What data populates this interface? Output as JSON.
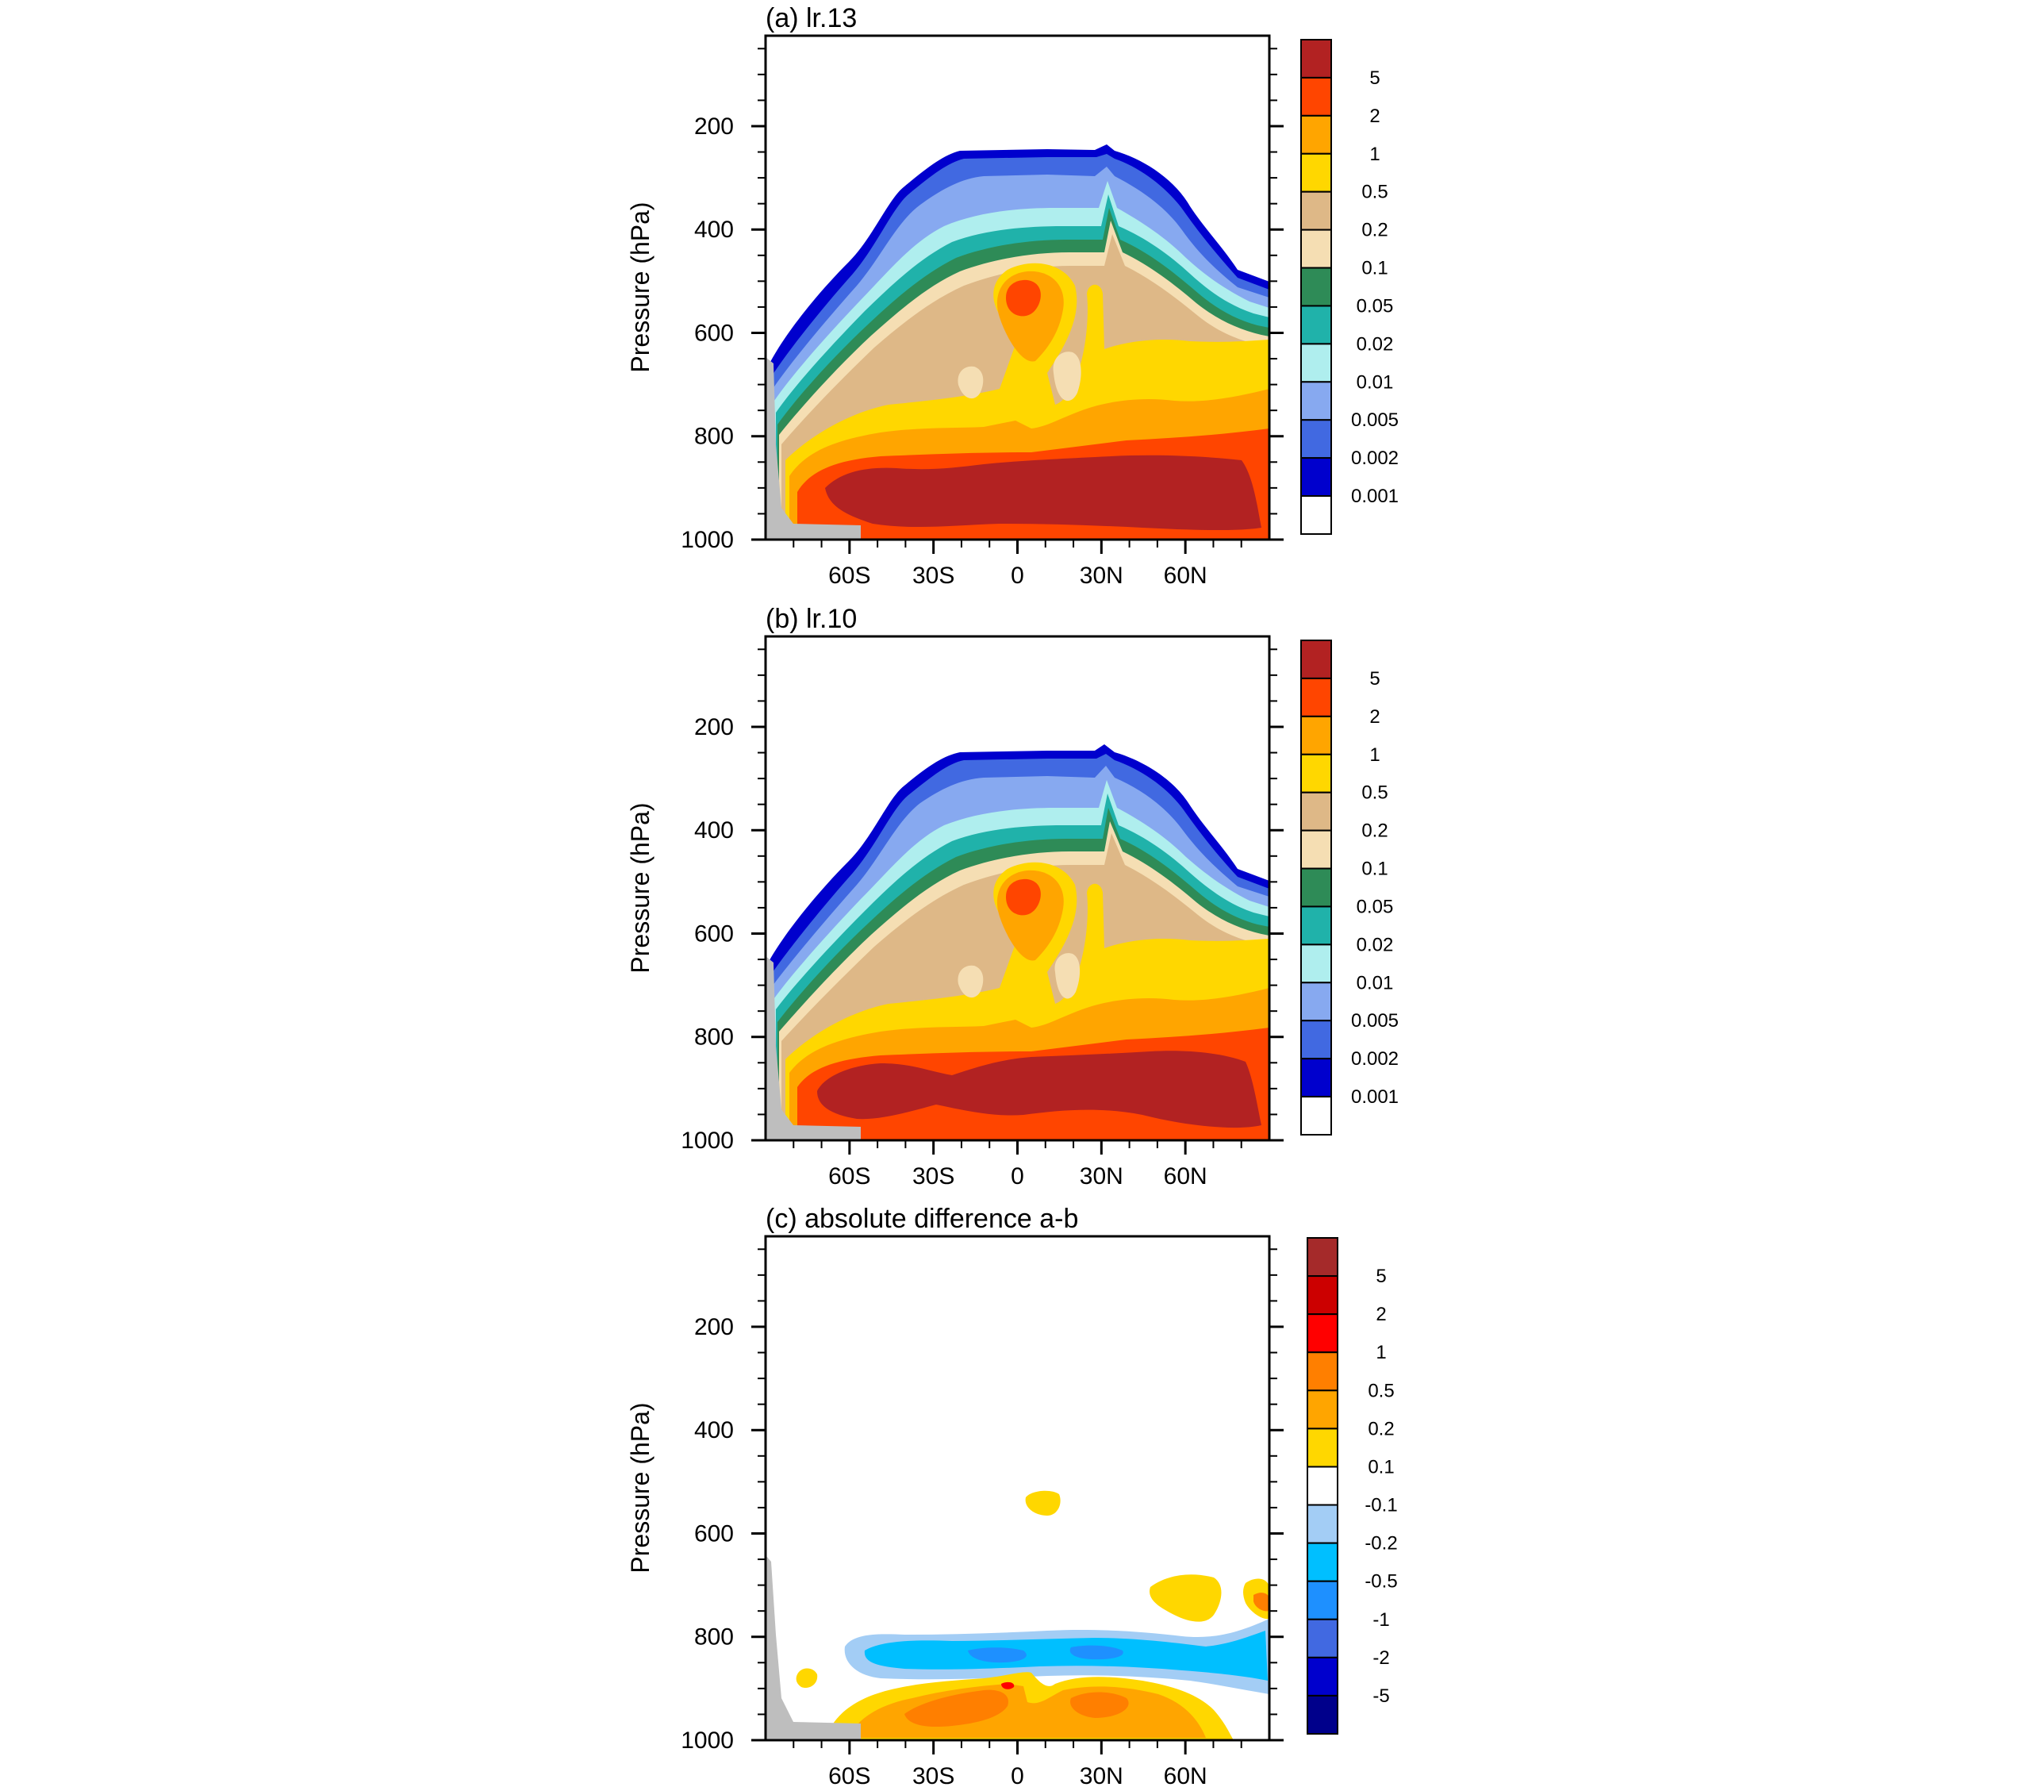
{
  "figure": {
    "y_axis_label": "Pressure (hPa)",
    "y_ticks": [
      "200",
      "400",
      "600",
      "800",
      "1000"
    ],
    "x_ticks": [
      "60S",
      "30S",
      "0",
      "30N",
      "60N"
    ]
  },
  "chart_data": [
    {
      "type": "heatmap",
      "title": "(a) lr.13",
      "ylabel": "Pressure (hPa)",
      "xlabel": "",
      "y_ticks": [
        200,
        400,
        600,
        800,
        1000
      ],
      "y_range": [
        1000,
        25
      ],
      "x_ticks": [
        "60S",
        "30S",
        "0",
        "30N",
        "60N"
      ],
      "x_range": [
        -90,
        90
      ],
      "grid": false,
      "colorbar_levels": [
        "5",
        "2",
        "1",
        "0.5",
        "0.2",
        "0.1",
        "0.05",
        "0.02",
        "0.01",
        "0.005",
        "0.002",
        "0.001"
      ],
      "colorbar_colors": [
        "#b22222",
        "#ff4500",
        "#ffa500",
        "#ffd700",
        "#deb887",
        "#f5deb3",
        "#2e8b57",
        "#20b2aa",
        "#afeeee",
        "#87a9f0",
        "#4169e1",
        "#0000cd",
        "#ffffff"
      ],
      "features": [
        {
          "name": "cloud top boundary",
          "top_pressure_hPa": 260,
          "lat_range": [
            -75,
            85
          ]
        },
        {
          "name": "surface maximum (>5)",
          "pressure_range_hPa": [
            840,
            990
          ],
          "lat_range": [
            -55,
            85
          ]
        },
        {
          "name": "mid-level local maximum (2-5)",
          "center_lat": 2,
          "center_pressure_hPa": 540
        }
      ]
    },
    {
      "type": "heatmap",
      "title": "(b) lr.10",
      "ylabel": "Pressure (hPa)",
      "xlabel": "",
      "y_ticks": [
        200,
        400,
        600,
        800,
        1000
      ],
      "y_range": [
        1000,
        25
      ],
      "x_ticks": [
        "60S",
        "30S",
        "0",
        "30N",
        "60N"
      ],
      "x_range": [
        -90,
        90
      ],
      "grid": false,
      "colorbar_levels": [
        "5",
        "2",
        "1",
        "0.5",
        "0.2",
        "0.1",
        "0.05",
        "0.02",
        "0.01",
        "0.005",
        "0.002",
        "0.001"
      ],
      "colorbar_colors": [
        "#b22222",
        "#ff4500",
        "#ffa500",
        "#ffd700",
        "#deb887",
        "#f5deb3",
        "#2e8b57",
        "#20b2aa",
        "#afeeee",
        "#87a9f0",
        "#4169e1",
        "#0000cd",
        "#ffffff"
      ],
      "features": [
        {
          "name": "cloud top boundary",
          "top_pressure_hPa": 260,
          "lat_range": [
            -75,
            85
          ]
        },
        {
          "name": "surface maximum (>5)",
          "pressure_range_hPa": [
            830,
            970
          ],
          "lat_range": [
            -60,
            85
          ]
        },
        {
          "name": "mid-level local maximum (2-5)",
          "center_lat": 2,
          "center_pressure_hPa": 535
        }
      ]
    },
    {
      "type": "heatmap",
      "title": "(c) absolute difference a-b",
      "ylabel": "Pressure (hPa)",
      "xlabel": "",
      "y_ticks": [
        200,
        400,
        600,
        800,
        1000
      ],
      "y_range": [
        1000,
        25
      ],
      "x_ticks": [
        "60S",
        "30S",
        "0",
        "30N",
        "60N"
      ],
      "x_range": [
        -90,
        90
      ],
      "grid": false,
      "colorbar_levels": [
        "5",
        "2",
        "1",
        "0.5",
        "0.2",
        "0.1",
        "-0.1",
        "-0.2",
        "-0.5",
        "-1",
        "-2",
        "-5"
      ],
      "colorbar_colors": [
        "#a52a2a",
        "#cc0000",
        "#ff0000",
        "#ff7f00",
        "#ffa500",
        "#ffd700",
        "#ffffff",
        "#a3cdf5",
        "#00bfff",
        "#1e90ff",
        "#4169e1",
        "#0000cd",
        "#00008b"
      ],
      "features": [
        {
          "name": "negative band (-0.2 to -1)",
          "pressure_range_hPa": [
            810,
            870
          ],
          "lat_range": [
            -60,
            90
          ]
        },
        {
          "name": "positive band (0.2 to 1)",
          "pressure_range_hPa": [
            870,
            990
          ],
          "lat_range": [
            -55,
            70
          ]
        }
      ]
    }
  ]
}
